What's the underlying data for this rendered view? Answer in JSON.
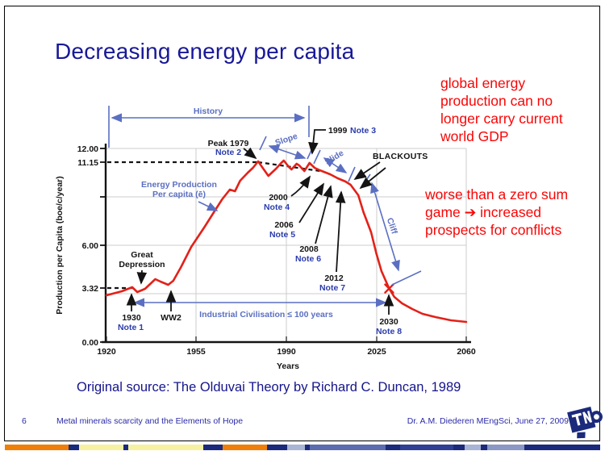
{
  "slide": {
    "title": "Decreasing energy per capita",
    "red_notes": {
      "block1_lines": [
        "global energy",
        "production can no",
        "longer carry current",
        "world GDP"
      ],
      "block2_lines": [
        "worse than a zero sum",
        "game ➔ increased",
        "prospects for conflicts"
      ]
    },
    "source_line": "Original source: The Olduvai Theory by Richard C. Duncan, 1989",
    "footer": {
      "page_number": "6",
      "left_text": "Metal minerals scarcity and the Elements of Hope",
      "right_text": "Dr. A.M. Diederen MEngSci, June 27, 2009",
      "logo_text": "TNO"
    },
    "colors": {
      "title_blue": "#181899",
      "note_red": "#f90606",
      "curve_red": "#e32119",
      "annotation_blue": "#5b6fc2",
      "note_label_blue": "#2b3cae",
      "footer_blue": "#2a2aa8",
      "strip_navy": "#1b2a7b"
    },
    "bottom_strip": [
      {
        "color": "#f07f09",
        "w": 79
      },
      {
        "color": "#1b2a7b",
        "w": 13
      },
      {
        "color": "#f5f1a1",
        "w": 55
      },
      {
        "color": "#1b2a7b",
        "w": 6
      },
      {
        "color": "#f5f1a1",
        "w": 93
      },
      {
        "color": "#1b2a7b",
        "w": 24
      },
      {
        "color": "#f07f09",
        "w": 55
      },
      {
        "color": "#1b2a7b",
        "w": 25
      },
      {
        "color": "#aab4d4",
        "w": 22
      },
      {
        "color": "#1b2a7b",
        "w": 6
      },
      {
        "color": "#5c6cae",
        "w": 94
      },
      {
        "color": "#1b2a7b",
        "w": 18
      },
      {
        "color": "#2e3f94",
        "w": 66
      },
      {
        "color": "#1b2a7b",
        "w": 14
      },
      {
        "color": "#aab4d4",
        "w": 20
      },
      {
        "color": "#1b2a7b",
        "w": 8
      },
      {
        "color": "#8b97c4",
        "w": 46
      },
      {
        "color": "#1b2a7b",
        "w": 94
      }
    ]
  },
  "chart_data": {
    "type": "line",
    "title": "",
    "xlabel": "Years",
    "ylabel": "Production per Capita (boe/c/year)",
    "xlim": [
      1920,
      2060
    ],
    "ylim": [
      0,
      12
    ],
    "grid": true,
    "x_tick_labels": [
      "1920",
      "1955",
      "1990",
      "2025",
      "2060"
    ],
    "y_tick_labels": [
      "12.00",
      "11.15",
      "6.00",
      "3.32",
      "0.00"
    ],
    "y_tick_values": [
      12.0,
      11.15,
      6.0,
      3.32,
      0.0
    ],
    "reference_levels": {
      "peak_level": 11.15,
      "baseline_level": 3.32
    },
    "x_marker": {
      "year": 2030,
      "value": 3.32
    },
    "series": [
      {
        "name": "Energy Production Per capita (ē)",
        "color": "#e32119",
        "points": [
          [
            1920,
            2.9
          ],
          [
            1926,
            3.15
          ],
          [
            1930,
            3.4
          ],
          [
            1932,
            3.1
          ],
          [
            1935,
            3.3
          ],
          [
            1939,
            3.9
          ],
          [
            1941,
            3.75
          ],
          [
            1944,
            3.55
          ],
          [
            1946,
            3.8
          ],
          [
            1949,
            4.65
          ],
          [
            1953,
            5.9
          ],
          [
            1958,
            7.1
          ],
          [
            1962,
            8.1
          ],
          [
            1965,
            8.85
          ],
          [
            1968,
            9.45
          ],
          [
            1970,
            9.35
          ],
          [
            1972,
            10.0
          ],
          [
            1975,
            10.5
          ],
          [
            1977,
            10.8
          ],
          [
            1979,
            11.2
          ],
          [
            1981,
            10.75
          ],
          [
            1983,
            10.3
          ],
          [
            1986,
            10.75
          ],
          [
            1988,
            11.1
          ],
          [
            1989,
            11.25
          ],
          [
            1991,
            10.85
          ],
          [
            1992,
            10.7
          ],
          [
            1994,
            11.05
          ],
          [
            1995,
            10.95
          ],
          [
            1997,
            10.6
          ],
          [
            1998,
            10.85
          ],
          [
            1999,
            11.1
          ],
          [
            2001,
            10.8
          ],
          [
            2003,
            10.65
          ],
          [
            2007,
            10.4
          ],
          [
            2010,
            10.15
          ],
          [
            2013,
            9.95
          ],
          [
            2015,
            9.75
          ],
          [
            2018,
            9.1
          ],
          [
            2020,
            8.05
          ],
          [
            2023,
            6.8
          ],
          [
            2025,
            5.5
          ],
          [
            2027,
            4.4
          ],
          [
            2030,
            3.32
          ],
          [
            2032,
            2.8
          ],
          [
            2035,
            2.4
          ],
          [
            2039,
            2.05
          ],
          [
            2043,
            1.75
          ],
          [
            2048,
            1.55
          ],
          [
            2054,
            1.35
          ],
          [
            2060,
            1.25
          ]
        ]
      }
    ],
    "labels": {
      "history": "History",
      "peak": "Peak 1979",
      "peak_note": "Note 2",
      "slope": "Slope",
      "slide": "Slide",
      "cliff": "Cliff",
      "blackouts": "BLACKOUTS",
      "energy1": "Energy Production",
      "energy2": "Per capita (ē)",
      "y1999": "1999",
      "n3": "Note 3",
      "y2000": "2000",
      "n4": "Note 4",
      "y2006": "2006",
      "n5": "Note 5",
      "y2008": "2008",
      "n6": "Note 6",
      "y2012": "2012",
      "n7": "Note 7",
      "y1930": "1930",
      "n1": "Note 1",
      "y2030": "2030",
      "n8": "Note 8",
      "gd1": "Great",
      "gd2": "Depression",
      "ww2": "WW2",
      "industrial": "Industrial Civilisation  ≤ 100 years"
    }
  }
}
